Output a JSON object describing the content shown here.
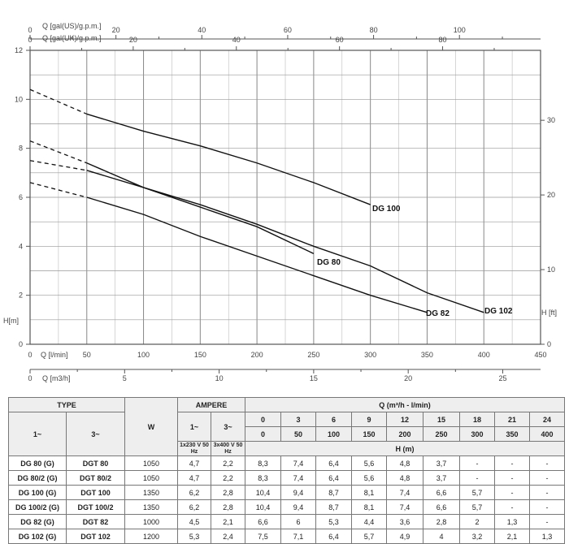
{
  "chart_data": {
    "type": "line",
    "xlabel": "Q [l/min]",
    "ylabel": "H[m]",
    "ylabel_right": "H [ft]",
    "top_axis_us_label": "Q [gal(US)/g.p.m.]",
    "top_axis_uk_label": "Q [gal(UK)/g.p.m.]",
    "bottom_axis_m3h_label": "Q [m3/h]",
    "xlim": [
      0,
      450
    ],
    "ylim": [
      0,
      12
    ],
    "x_ticks": [
      0,
      50,
      100,
      150,
      200,
      250,
      300,
      350,
      400,
      450
    ],
    "y_ticks": [
      0,
      2,
      4,
      6,
      8,
      10,
      12
    ],
    "y_right_ticks": [
      0,
      10,
      20,
      30
    ],
    "us_ticks": [
      0,
      20,
      40,
      60,
      80,
      100
    ],
    "uk_ticks": [
      0,
      20,
      40,
      60,
      80
    ],
    "m3h_ticks": [
      0,
      5,
      10,
      15,
      20,
      25
    ],
    "grid": true,
    "series": [
      {
        "name": "DG 100",
        "x": [
          0,
          50,
          100,
          150,
          200,
          250,
          300
        ],
        "y": [
          10.4,
          9.4,
          8.7,
          8.1,
          7.4,
          6.6,
          5.7
        ]
      },
      {
        "name": "DG 80",
        "x": [
          0,
          50,
          100,
          150,
          200,
          250
        ],
        "y": [
          8.3,
          7.4,
          6.4,
          5.6,
          4.8,
          3.7
        ]
      },
      {
        "name": "DG 82",
        "x": [
          0,
          50,
          100,
          150,
          200,
          250,
          300,
          350
        ],
        "y": [
          6.6,
          6,
          5.3,
          4.4,
          3.6,
          2.8,
          2,
          1.3
        ]
      },
      {
        "name": "DG 102",
        "x": [
          0,
          50,
          100,
          150,
          200,
          250,
          300,
          350,
          400
        ],
        "y": [
          7.5,
          7.1,
          6.4,
          5.7,
          4.9,
          4,
          3.2,
          2.1,
          1.3
        ]
      }
    ]
  },
  "table": {
    "type_header": "TYPE",
    "w_header": "W",
    "ampere_header": "AMPERE",
    "q_header": "Q (m³/h - l/min)",
    "phase1": "1~",
    "phase3": "3~",
    "volt1": "1x230 V 50 Hz",
    "volt3": "3x400 V 50 Hz",
    "h_header": "H (m)",
    "q_m3h": [
      "0",
      "3",
      "6",
      "9",
      "12",
      "15",
      "18",
      "21",
      "24"
    ],
    "q_lmin": [
      "0",
      "50",
      "100",
      "150",
      "200",
      "250",
      "300",
      "350",
      "400"
    ],
    "rows": [
      {
        "t1": "DG 80 (G)",
        "t3": "DGT 80",
        "w": "1050",
        "a1": "4,7",
        "a3": "2,2",
        "h": [
          "8,3",
          "7,4",
          "6,4",
          "5,6",
          "4,8",
          "3,7",
          "-",
          "-",
          "-"
        ]
      },
      {
        "t1": "DG 80/2 (G)",
        "t3": "DGT 80/2",
        "w": "1050",
        "a1": "4,7",
        "a3": "2,2",
        "h": [
          "8,3",
          "7,4",
          "6,4",
          "5,6",
          "4,8",
          "3,7",
          "-",
          "-",
          "-"
        ]
      },
      {
        "t1": "DG 100 (G)",
        "t3": "DGT 100",
        "w": "1350",
        "a1": "6,2",
        "a3": "2,8",
        "h": [
          "10,4",
          "9,4",
          "8,7",
          "8,1",
          "7,4",
          "6,6",
          "5,7",
          "-",
          "-"
        ]
      },
      {
        "t1": "DG 100/2 (G)",
        "t3": "DGT 100/2",
        "w": "1350",
        "a1": "6,2",
        "a3": "2,8",
        "h": [
          "10,4",
          "9,4",
          "8,7",
          "8,1",
          "7,4",
          "6,6",
          "5,7",
          "-",
          "-"
        ]
      },
      {
        "t1": "DG 82 (G)",
        "t3": "DGT 82",
        "w": "1000",
        "a1": "4,5",
        "a3": "2,1",
        "h": [
          "6,6",
          "6",
          "5,3",
          "4,4",
          "3,6",
          "2,8",
          "2",
          "1,3",
          "-"
        ]
      },
      {
        "t1": "DG 102 (G)",
        "t3": "DGT 102",
        "w": "1200",
        "a1": "5,3",
        "a3": "2,4",
        "h": [
          "7,5",
          "7,1",
          "6,4",
          "5,7",
          "4,9",
          "4",
          "3,2",
          "2,1",
          "1,3"
        ]
      }
    ]
  }
}
